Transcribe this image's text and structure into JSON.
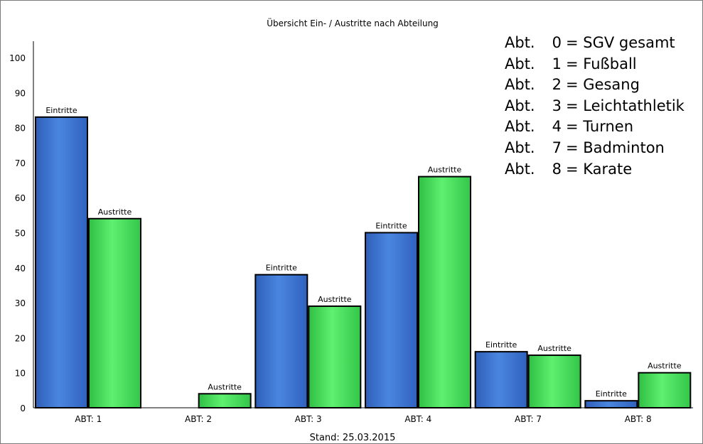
{
  "chart_data": {
    "type": "bar",
    "title": "Übersicht Ein- / Austritte nach Abteilung",
    "footer": "Stand: 25.03.2015",
    "categories": [
      "ABT: 1",
      "ABT: 2",
      "ABT: 3",
      "ABT: 4",
      "ABT: 7",
      "ABT: 8"
    ],
    "series": [
      {
        "name": "Eintritte",
        "color": "#3a72d0",
        "values": [
          83,
          0,
          38,
          50,
          16,
          2
        ]
      },
      {
        "name": "Austritte",
        "color": "#3fd853",
        "values": [
          54,
          4,
          29,
          66,
          15,
          10
        ]
      }
    ],
    "ylim": [
      0,
      100
    ],
    "yticks": [
      0,
      10,
      20,
      30,
      40,
      50,
      60,
      70,
      80,
      90,
      100
    ],
    "grid": false,
    "legend_position": "top-right",
    "legend": [
      {
        "prefix": "Abt.",
        "num": "0",
        "text": "= SGV gesamt"
      },
      {
        "prefix": "Abt.",
        "num": "1",
        "text": "= Fußball"
      },
      {
        "prefix": "Abt.",
        "num": "2",
        "text": "= Gesang"
      },
      {
        "prefix": "Abt.",
        "num": "3",
        "text": "= Leichtathletik"
      },
      {
        "prefix": "Abt.",
        "num": "4",
        "text": "= Turnen"
      },
      {
        "prefix": "Abt.",
        "num": "7",
        "text": "= Badminton"
      },
      {
        "prefix": "Abt.",
        "num": "8",
        "text": "= Karate"
      }
    ]
  }
}
